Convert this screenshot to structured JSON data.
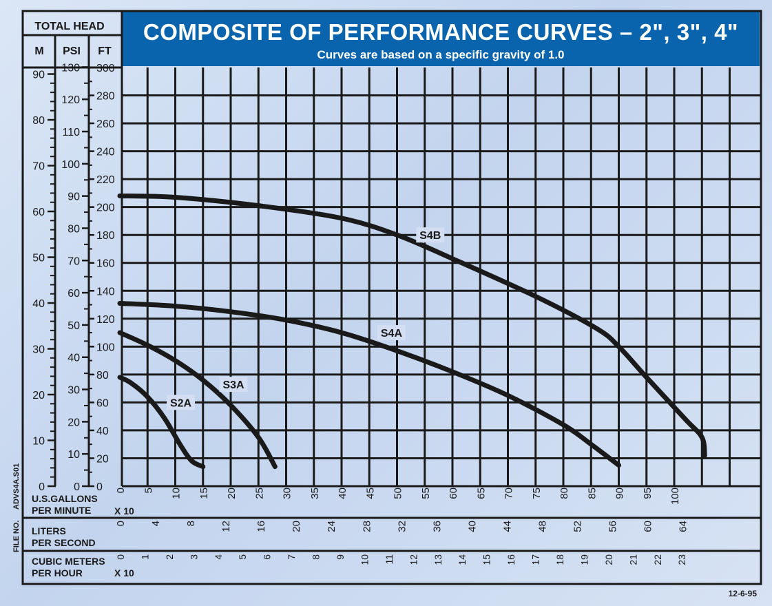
{
  "header": {
    "title": "COMPOSITE OF PERFORMANCE CURVES – 2\", 3\", 4\"",
    "subtitle": "Curves are based on a specific gravity of 1.0"
  },
  "axis_header": {
    "total_head": "TOTAL HEAD",
    "m": "M",
    "psi": "PSI",
    "ft": "FT"
  },
  "bottom_rows": {
    "gpm_label_1": "U.S.GALLONS",
    "gpm_label_2": "PER MINUTE",
    "gpm_mult": "X 10",
    "lps_label_1": "LITERS",
    "lps_label_2": "PER SECOND",
    "cmh_label_1": "CUBIC METERS",
    "cmh_label_2": "PER HOUR",
    "cmh_mult": "X 10"
  },
  "side_labels": {
    "adv": "ADVS4A.S01",
    "file_no": "FILE NO."
  },
  "date": "12-6-95",
  "colors": {
    "banner": "#0a63ad",
    "grid": "#1a1a1a",
    "curve": "#1a1a1a"
  },
  "chart_data": {
    "type": "line",
    "title": "COMPOSITE OF PERFORMANCE CURVES – 2\", 3\", 4\"",
    "xlabel": "U.S.GALLONS PER MINUTE X 10",
    "ylabel": "TOTAL HEAD (FT)",
    "xlim": [
      0,
      110
    ],
    "ylim": [
      0,
      300
    ],
    "gpm_ticks": [
      "0",
      "5",
      "10",
      "15",
      "20",
      "25",
      "30",
      "35",
      "40",
      "45",
      "50",
      "55",
      "60",
      "65",
      "70",
      "75",
      "80",
      "85",
      "90",
      "95",
      "100"
    ],
    "ft_ticks": [
      "0",
      "20",
      "40",
      "60",
      "80",
      "100",
      "120",
      "140",
      "160",
      "180",
      "200",
      "220",
      "240",
      "260",
      "280",
      "300"
    ],
    "m_ticks": [
      "0",
      "10",
      "20",
      "30",
      "40",
      "50",
      "60",
      "70",
      "80",
      "90"
    ],
    "psi_ticks": [
      "0",
      "10",
      "20",
      "30",
      "40",
      "50",
      "60",
      "70",
      "80",
      "90",
      "100",
      "110",
      "120",
      "130"
    ],
    "lps_ticks": [
      "0",
      "4",
      "8",
      "12",
      "16",
      "20",
      "24",
      "28",
      "32",
      "36",
      "40",
      "44",
      "48",
      "52",
      "56",
      "60",
      "64"
    ],
    "cmh_ticks": [
      "0",
      "1",
      "2",
      "3",
      "4",
      "5",
      "6",
      "7",
      "8",
      "9",
      "10",
      "11",
      "12",
      "13",
      "14",
      "15",
      "16",
      "17",
      "18",
      "19",
      "20",
      "21",
      "22",
      "23"
    ],
    "series": [
      {
        "name": "S4B",
        "label_at": [
          56,
          180
        ],
        "x": [
          0,
          10,
          25,
          40,
          50,
          60,
          75,
          86,
          90,
          95,
          102,
          105,
          105.5
        ],
        "y": [
          208,
          207,
          201,
          192,
          180,
          163,
          136,
          113,
          100,
          78,
          48,
          35,
          22
        ]
      },
      {
        "name": "S4A",
        "label_at": [
          49,
          110
        ],
        "x": [
          0,
          10,
          20,
          30,
          40,
          50,
          60,
          70,
          80,
          85,
          90
        ],
        "y": [
          131,
          129,
          125,
          119,
          110,
          97,
          82,
          65,
          44,
          30,
          15
        ]
      },
      {
        "name": "S3A",
        "label_at": [
          20.5,
          73
        ],
        "x": [
          0,
          5,
          10,
          15,
          20,
          25,
          28
        ],
        "y": [
          110,
          101,
          90,
          76,
          58,
          35,
          14
        ]
      },
      {
        "name": "S2A",
        "label_at": [
          11,
          60
        ],
        "x": [
          0,
          2,
          5,
          8,
          11,
          13,
          15
        ],
        "y": [
          78,
          74,
          64,
          49,
          29,
          18,
          14
        ]
      }
    ]
  }
}
